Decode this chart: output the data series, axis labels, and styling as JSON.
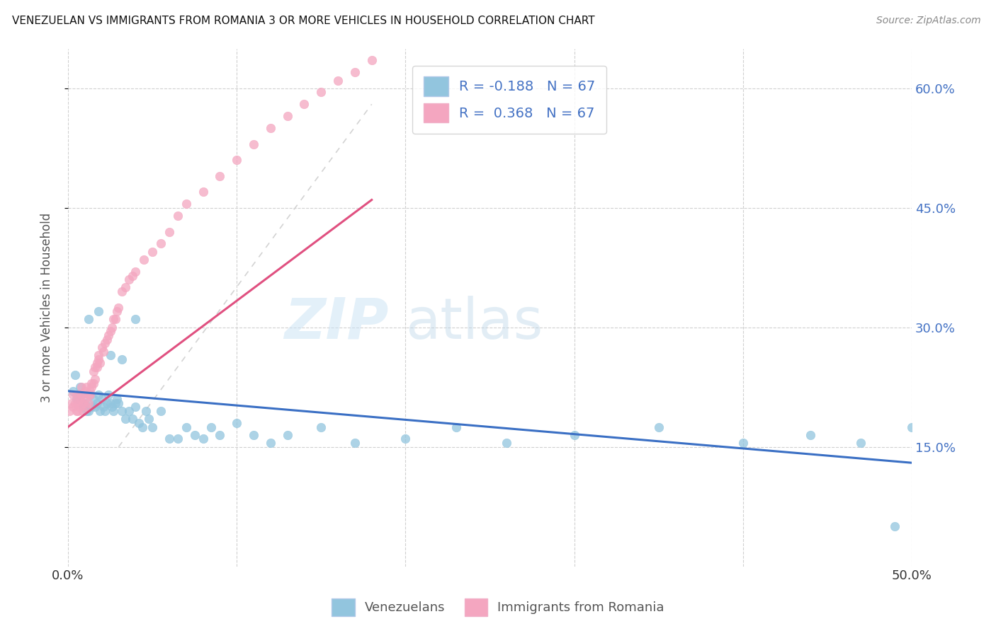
{
  "title": "VENEZUELAN VS IMMIGRANTS FROM ROMANIA 3 OR MORE VEHICLES IN HOUSEHOLD CORRELATION CHART",
  "source": "Source: ZipAtlas.com",
  "ylabel": "3 or more Vehicles in Household",
  "legend_venezuelans": "Venezuelans",
  "legend_romania": "Immigrants from Romania",
  "R_venezuelan": -0.188,
  "N_venezuelan": 67,
  "R_romania": 0.368,
  "N_romania": 67,
  "xlim": [
    0.0,
    0.5
  ],
  "ylim": [
    0.0,
    0.65
  ],
  "ytick_positions": [
    0.15,
    0.3,
    0.45,
    0.6
  ],
  "color_venezuelan": "#92c5de",
  "color_romania": "#f4a6c0",
  "trendline_venezuelan_color": "#3a6fc4",
  "trendline_romania_color": "#e05080",
  "background_color": "#ffffff",
  "venezuelan_x": [
    0.003,
    0.004,
    0.005,
    0.006,
    0.007,
    0.008,
    0.009,
    0.01,
    0.011,
    0.012,
    0.013,
    0.014,
    0.015,
    0.016,
    0.017,
    0.018,
    0.019,
    0.02,
    0.021,
    0.022,
    0.023,
    0.024,
    0.025,
    0.026,
    0.027,
    0.028,
    0.029,
    0.03,
    0.032,
    0.034,
    0.036,
    0.038,
    0.04,
    0.042,
    0.044,
    0.046,
    0.048,
    0.05,
    0.055,
    0.06,
    0.065,
    0.07,
    0.075,
    0.08,
    0.085,
    0.09,
    0.1,
    0.11,
    0.12,
    0.13,
    0.15,
    0.17,
    0.2,
    0.23,
    0.26,
    0.3,
    0.35,
    0.4,
    0.44,
    0.47,
    0.49,
    0.5,
    0.012,
    0.018,
    0.025,
    0.032,
    0.04
  ],
  "venezuelan_y": [
    0.22,
    0.24,
    0.21,
    0.215,
    0.225,
    0.215,
    0.2,
    0.205,
    0.195,
    0.195,
    0.215,
    0.2,
    0.21,
    0.2,
    0.205,
    0.215,
    0.195,
    0.21,
    0.2,
    0.195,
    0.205,
    0.215,
    0.205,
    0.2,
    0.195,
    0.205,
    0.21,
    0.205,
    0.195,
    0.185,
    0.195,
    0.185,
    0.2,
    0.18,
    0.175,
    0.195,
    0.185,
    0.175,
    0.195,
    0.16,
    0.16,
    0.175,
    0.165,
    0.16,
    0.175,
    0.165,
    0.18,
    0.165,
    0.155,
    0.165,
    0.175,
    0.155,
    0.16,
    0.175,
    0.155,
    0.165,
    0.175,
    0.155,
    0.165,
    0.155,
    0.05,
    0.175,
    0.31,
    0.32,
    0.265,
    0.26,
    0.31
  ],
  "romania_x": [
    0.001,
    0.002,
    0.003,
    0.003,
    0.004,
    0.005,
    0.005,
    0.006,
    0.006,
    0.007,
    0.007,
    0.008,
    0.008,
    0.009,
    0.009,
    0.01,
    0.01,
    0.011,
    0.011,
    0.012,
    0.012,
    0.013,
    0.013,
    0.014,
    0.014,
    0.015,
    0.015,
    0.016,
    0.016,
    0.017,
    0.017,
    0.018,
    0.018,
    0.019,
    0.02,
    0.021,
    0.022,
    0.023,
    0.024,
    0.025,
    0.026,
    0.027,
    0.028,
    0.029,
    0.03,
    0.032,
    0.034,
    0.036,
    0.038,
    0.04,
    0.045,
    0.05,
    0.055,
    0.06,
    0.065,
    0.07,
    0.08,
    0.09,
    0.1,
    0.11,
    0.12,
    0.13,
    0.14,
    0.15,
    0.16,
    0.17,
    0.18
  ],
  "romania_y": [
    0.195,
    0.205,
    0.215,
    0.2,
    0.205,
    0.195,
    0.215,
    0.205,
    0.195,
    0.21,
    0.2,
    0.215,
    0.225,
    0.205,
    0.195,
    0.21,
    0.22,
    0.2,
    0.225,
    0.215,
    0.205,
    0.22,
    0.215,
    0.225,
    0.23,
    0.245,
    0.23,
    0.25,
    0.235,
    0.25,
    0.255,
    0.26,
    0.265,
    0.255,
    0.275,
    0.27,
    0.28,
    0.285,
    0.29,
    0.295,
    0.3,
    0.31,
    0.31,
    0.32,
    0.325,
    0.345,
    0.35,
    0.36,
    0.365,
    0.37,
    0.385,
    0.395,
    0.405,
    0.42,
    0.44,
    0.455,
    0.47,
    0.49,
    0.51,
    0.53,
    0.55,
    0.565,
    0.58,
    0.595,
    0.61,
    0.62,
    0.635
  ],
  "watermark_zip": "ZIP",
  "watermark_atlas": "atlas"
}
